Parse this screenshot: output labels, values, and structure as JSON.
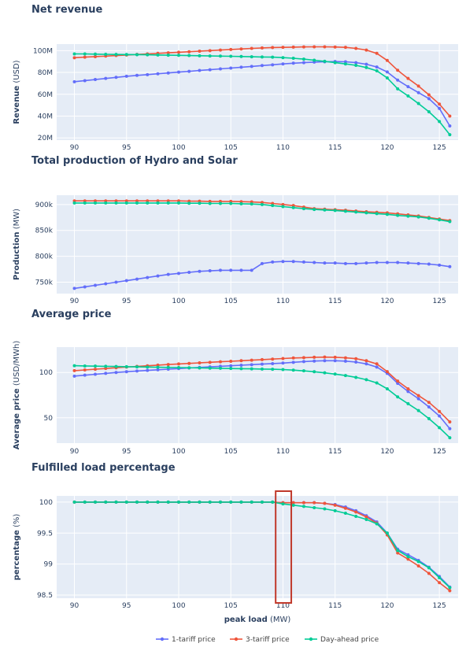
{
  "colors": {
    "plot_bg": "#e5ecf6",
    "grid": "#ffffff",
    "highlight": "#c0392b"
  },
  "chart_data": [
    {
      "type": "line",
      "title": "Net revenue",
      "ylabel_bold": "Revenue",
      "ylabel_unit": "(USD)",
      "xlabel": "",
      "xlim": [
        88.3,
        126.8
      ],
      "ylim": [
        18000000,
        106000000
      ],
      "xticks": [
        90,
        95,
        100,
        105,
        110,
        115,
        120,
        125
      ],
      "yticks": [
        {
          "v": 20000000,
          "label": "20M"
        },
        {
          "v": 40000000,
          "label": "40M"
        },
        {
          "v": 60000000,
          "label": "60M"
        },
        {
          "v": 80000000,
          "label": "80M"
        },
        {
          "v": 100000000,
          "label": "100M"
        }
      ],
      "x": [
        90,
        91,
        92,
        93,
        94,
        95,
        96,
        97,
        98,
        99,
        100,
        101,
        102,
        103,
        104,
        105,
        106,
        107,
        108,
        109,
        110,
        111,
        112,
        113,
        114,
        115,
        116,
        117,
        118,
        119,
        120,
        121,
        122,
        123,
        124,
        125,
        126
      ],
      "series": [
        {
          "name": "1-tariff price",
          "color": "#636efa",
          "values": [
            71500000.0,
            72500000.0,
            73500000.0,
            74500000.0,
            75500000.0,
            76500000.0,
            77300000.0,
            78000000.0,
            78800000.0,
            79500000.0,
            80300000.0,
            81000000.0,
            81800000.0,
            82500000.0,
            83300000.0,
            84000000.0,
            84800000.0,
            85500000.0,
            86300000.0,
            87000000.0,
            87800000.0,
            88500000.0,
            89000000.0,
            89500000.0,
            89800000.0,
            90000000.0,
            89800000.0,
            89000000.0,
            87500000.0,
            85000000.0,
            80500000.0,
            73000000.0,
            67000000.0,
            61500000.0,
            56000000.0,
            47000000.0,
            31000000.0
          ]
        },
        {
          "name": "3-tariff price",
          "color": "#ef553b",
          "values": [
            93500000.0,
            94000000.0,
            94500000.0,
            95000000.0,
            95500000.0,
            96000000.0,
            96500000.0,
            97000000.0,
            97500000.0,
            98000000.0,
            98500000.0,
            99000000.0,
            99500000.0,
            100000000.0,
            100500000.0,
            101000000.0,
            101500000.0,
            102000000.0,
            102500000.0,
            102800000.0,
            103000000.0,
            103200000.0,
            103400000.0,
            103500000.0,
            103500000.0,
            103300000.0,
            103000000.0,
            102000000.0,
            100500000.0,
            97500000.0,
            91000000.0,
            82000000.0,
            74500000.0,
            67500000.0,
            59500000.0,
            51000000.0,
            40000000.0
          ]
        },
        {
          "name": "Day-ahead price",
          "color": "#00cc96",
          "values": [
            97000000.0,
            97000000.0,
            96800000.0,
            96600000.0,
            96500000.0,
            96400000.0,
            96300000.0,
            96200000.0,
            96000000.0,
            95800000.0,
            95700000.0,
            95500000.0,
            95300000.0,
            95100000.0,
            95000000.0,
            94800000.0,
            94600000.0,
            94400000.0,
            94200000.0,
            94000000.0,
            93600000.0,
            93000000.0,
            92200000.0,
            91200000.0,
            90200000.0,
            89000000.0,
            87800000.0,
            86500000.0,
            84500000.0,
            81500000.0,
            75000000.0,
            65000000.0,
            58500000.0,
            51500000.0,
            44000000.0,
            35000000.0,
            23000000.0
          ]
        }
      ]
    },
    {
      "type": "line",
      "title": "Total production of Hydro and Solar",
      "ylabel_bold": "Production",
      "ylabel_unit": "(MW)",
      "xlabel": "",
      "xlim": [
        88.3,
        126.8
      ],
      "ylim": [
        728000,
        918000
      ],
      "xticks": [
        90,
        95,
        100,
        105,
        110,
        115,
        120,
        125
      ],
      "yticks": [
        {
          "v": 750000,
          "label": "750k"
        },
        {
          "v": 800000,
          "label": "800k"
        },
        {
          "v": 850000,
          "label": "850k"
        },
        {
          "v": 900000,
          "label": "900k"
        }
      ],
      "x": [
        90,
        91,
        92,
        93,
        94,
        95,
        96,
        97,
        98,
        99,
        100,
        101,
        102,
        103,
        104,
        105,
        106,
        107,
        108,
        109,
        110,
        111,
        112,
        113,
        114,
        115,
        116,
        117,
        118,
        119,
        120,
        121,
        122,
        123,
        124,
        125,
        126
      ],
      "series": [
        {
          "name": "1-tariff price",
          "color": "#636efa",
          "values": [
            738000,
            741000,
            744000,
            747000,
            750000,
            753000,
            756000,
            759000,
            762000,
            765000,
            767000,
            769000,
            771000,
            772000,
            773000,
            773000,
            773000,
            773000,
            786000,
            789000,
            790000,
            790000,
            789000,
            788000,
            787000,
            787000,
            786000,
            786000,
            787000,
            788000,
            788000,
            788000,
            787000,
            786000,
            785000,
            783000,
            780000
          ]
        },
        {
          "name": "3-tariff price",
          "color": "#ef553b",
          "values": [
            907000,
            907000,
            907000,
            907000,
            907000,
            907000,
            907000,
            907000,
            907000,
            907000,
            907000,
            906500,
            906500,
            906000,
            906000,
            906000,
            905500,
            905000,
            904000,
            902000,
            900000,
            898000,
            895000,
            892000,
            891000,
            890000,
            889000,
            887500,
            886000,
            885000,
            884000,
            882000,
            880000,
            878000,
            875000,
            872000,
            869000
          ]
        },
        {
          "name": "Day-ahead price",
          "color": "#00cc96",
          "values": [
            903000,
            903000,
            903000,
            903000,
            903000,
            903000,
            903000,
            903000,
            903000,
            903000,
            903000,
            902500,
            902500,
            902000,
            902000,
            902000,
            901500,
            901000,
            900000,
            898000,
            896000,
            894000,
            892000,
            890500,
            889500,
            888500,
            887000,
            885500,
            884000,
            882500,
            881000,
            879000,
            877500,
            876000,
            873500,
            870500,
            867000
          ]
        }
      ]
    },
    {
      "type": "line",
      "title": "Average price",
      "ylabel_bold": "Average price",
      "ylabel_unit": "(USD/MWh)",
      "xlabel": "",
      "xlim": [
        88.3,
        126.8
      ],
      "ylim": [
        22,
        128
      ],
      "xticks": [
        90,
        95,
        100,
        105,
        110,
        115,
        120,
        125
      ],
      "yticks": [
        {
          "v": 50,
          "label": "50"
        },
        {
          "v": 100,
          "label": "100"
        }
      ],
      "x": [
        90,
        91,
        92,
        93,
        94,
        95,
        96,
        97,
        98,
        99,
        100,
        101,
        102,
        103,
        104,
        105,
        106,
        107,
        108,
        109,
        110,
        111,
        112,
        113,
        114,
        115,
        116,
        117,
        118,
        119,
        120,
        121,
        122,
        123,
        124,
        125,
        126
      ],
      "series": [
        {
          "name": "1-tariff price",
          "color": "#636efa",
          "values": [
            96.0,
            97.0,
            98.0,
            99.0,
            100.0,
            100.8,
            101.6,
            102.3,
            103.0,
            103.7,
            104.3,
            105.0,
            105.6,
            106.2,
            106.8,
            107.4,
            108.0,
            108.6,
            109.2,
            109.8,
            110.4,
            111.2,
            112.0,
            112.6,
            113.0,
            113.0,
            112.5,
            111.5,
            109.5,
            106.0,
            99.0,
            88.0,
            79.0,
            71.0,
            62.0,
            52.0,
            38.0
          ]
        },
        {
          "name": "3-tariff price",
          "color": "#ef553b",
          "values": [
            102.0,
            102.8,
            103.6,
            104.4,
            105.2,
            106.0,
            106.7,
            107.4,
            108.1,
            108.8,
            109.4,
            110.0,
            110.6,
            111.2,
            111.8,
            112.4,
            113.0,
            113.6,
            114.2,
            114.8,
            115.4,
            116.0,
            116.4,
            116.8,
            117.0,
            116.8,
            116.2,
            115.2,
            113.0,
            109.5,
            101.0,
            90.5,
            82.0,
            74.5,
            67.0,
            57.0,
            45.5
          ]
        },
        {
          "name": "Day-ahead price",
          "color": "#00cc96",
          "values": [
            107.5,
            107.2,
            107.0,
            106.8,
            106.6,
            106.4,
            106.2,
            106.0,
            105.8,
            105.6,
            105.4,
            105.2,
            105.0,
            104.8,
            104.6,
            104.4,
            104.2,
            104.0,
            103.8,
            103.6,
            103.2,
            102.6,
            101.8,
            100.8,
            99.6,
            98.2,
            96.6,
            94.6,
            92.0,
            88.5,
            82.0,
            73.0,
            65.5,
            58.0,
            49.0,
            39.0,
            28.0
          ]
        }
      ]
    },
    {
      "type": "line",
      "title": "Fulfilled load percentage",
      "ylabel_bold": "percentage",
      "ylabel_unit": "(%)",
      "xlabel_bold": "peak load",
      "xlabel_unit": "(MW)",
      "xlim": [
        88.3,
        126.8
      ],
      "ylim": [
        98.45,
        100.1
      ],
      "xticks": [
        90,
        95,
        100,
        105,
        110,
        115,
        120,
        125
      ],
      "yticks": [
        {
          "v": 98.5,
          "label": "98.5"
        },
        {
          "v": 99,
          "label": "99"
        },
        {
          "v": 99.5,
          "label": "99.5"
        },
        {
          "v": 100,
          "label": "100"
        }
      ],
      "x": [
        90,
        91,
        92,
        93,
        94,
        95,
        96,
        97,
        98,
        99,
        100,
        101,
        102,
        103,
        104,
        105,
        106,
        107,
        108,
        109,
        110,
        111,
        112,
        113,
        114,
        115,
        116,
        117,
        118,
        119,
        120,
        121,
        122,
        123,
        124,
        125,
        126
      ],
      "series": [
        {
          "name": "1-tariff price",
          "color": "#636efa",
          "values": [
            100,
            100,
            100,
            100,
            100,
            100,
            100,
            100,
            100,
            100,
            100,
            100,
            100,
            100,
            100,
            100,
            100,
            100,
            100,
            100,
            99.99,
            99.99,
            99.99,
            99.99,
            99.98,
            99.96,
            99.92,
            99.86,
            99.78,
            99.68,
            99.5,
            99.24,
            99.15,
            99.06,
            98.95,
            98.8,
            98.63
          ]
        },
        {
          "name": "3-tariff price",
          "color": "#ef553b",
          "values": [
            100,
            100,
            100,
            100,
            100,
            100,
            100,
            100,
            100,
            100,
            100,
            100,
            100,
            100,
            100,
            100,
            100,
            100,
            100,
            100,
            99.99,
            99.99,
            99.99,
            99.99,
            99.98,
            99.95,
            99.9,
            99.84,
            99.76,
            99.66,
            99.47,
            99.18,
            99.08,
            98.97,
            98.85,
            98.7,
            98.57
          ]
        },
        {
          "name": "Day-ahead price",
          "color": "#00cc96",
          "values": [
            100,
            100,
            100,
            100,
            100,
            100,
            100,
            100,
            100,
            100,
            100,
            100,
            100,
            100,
            100,
            100,
            100,
            100,
            100,
            100,
            99.97,
            99.95,
            99.93,
            99.91,
            99.89,
            99.86,
            99.82,
            99.77,
            99.72,
            99.65,
            99.5,
            99.22,
            99.12,
            99.04,
            98.94,
            98.78,
            98.62
          ]
        }
      ],
      "highlight_x_range": [
        109.3,
        110.8
      ]
    }
  ],
  "legend": [
    {
      "name": "1-tariff price",
      "color": "#636efa"
    },
    {
      "name": "3-tariff price",
      "color": "#ef553b"
    },
    {
      "name": "Day-ahead price",
      "color": "#00cc96"
    }
  ]
}
